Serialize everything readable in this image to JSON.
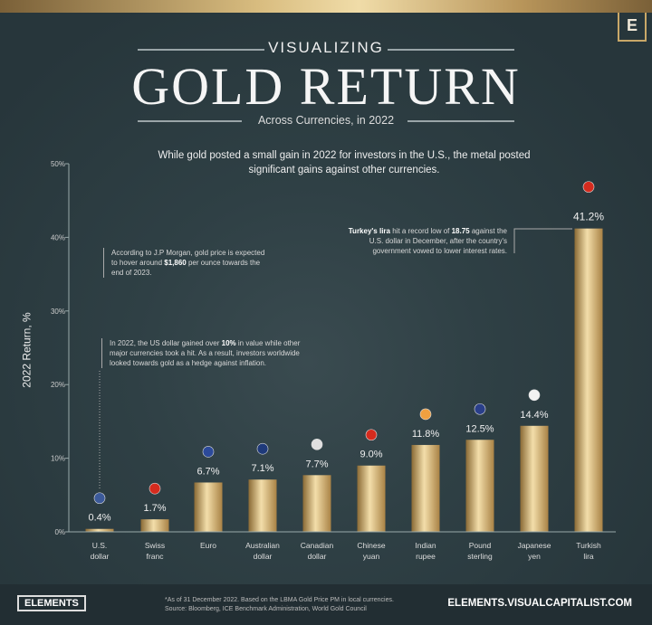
{
  "header": {
    "kicker": "VISUALIZING",
    "title": "GOLD RETURN",
    "subtitle": "Across Currencies, in 2022",
    "logo": "E"
  },
  "intro": "While gold posted a small gain in 2022 for investors in the U.S., the metal posted significant gains against other currencies.",
  "notes": {
    "jpm": {
      "pre": "According to J.P Morgan, gold price is expected to hover around ",
      "bold": "$1,860",
      "post": " per ounce towards the end of 2023."
    },
    "usd": {
      "pre": "In 2022, the US dollar gained over ",
      "bold": "10%",
      "post": " in value while other major currencies took a hit. As a result, investors worldwide looked towards gold as a hedge against inflation."
    },
    "lira": {
      "bold1": "Turkey's lira",
      "mid": " hit a record low of ",
      "bold2": "18.75",
      "post": " against the U.S. dollar in December, after the country's government vowed to lower interest rates."
    }
  },
  "chart_data": {
    "type": "bar",
    "ylabel": "2022 Return, %",
    "ylim": [
      0,
      50
    ],
    "yticks": [
      "0%",
      "10%",
      "20%",
      "30%",
      "40%",
      "50%"
    ],
    "categories": [
      "U.S. dollar",
      "Swiss franc",
      "Euro",
      "Australian dollar",
      "Canadian dollar",
      "Chinese yuan",
      "Indian rupee",
      "Pound sterling",
      "Japanese yen",
      "Turkish lira"
    ],
    "values": [
      0.4,
      1.7,
      6.7,
      7.1,
      7.7,
      9.0,
      11.8,
      12.5,
      14.4,
      41.2
    ],
    "labels": [
      "0.4%",
      "1.7%",
      "6.7%",
      "7.1%",
      "7.7%",
      "9.0%",
      "11.8%",
      "12.5%",
      "14.4%",
      "41.2%"
    ],
    "flag_icons": [
      "us-flag-icon",
      "swiss-flag-icon",
      "eu-flag-icon",
      "australia-flag-icon",
      "canada-flag-icon",
      "china-flag-icon",
      "india-flag-icon",
      "uk-flag-icon",
      "japan-flag-icon",
      "turkey-flag-icon"
    ],
    "flag_colors": [
      "#3c5a9a",
      "#d52b1e",
      "#2c4a9a",
      "#1f3a7a",
      "#e0e0e0",
      "#d52b1e",
      "#f0a040",
      "#2a3f8a",
      "#f2f2f2",
      "#d52b1e"
    ],
    "bar_color": "#d4b06a"
  },
  "footer": {
    "brand": "ELEMENTS",
    "source1": "*As of 31 December 2022. Based on the LBMA Gold Price PM in local currencies.",
    "source2": "Source: Bloomberg, ICE Benchmark Administration, World Gold Council",
    "url": "ELEMENTS.VISUALCAPITALIST.COM"
  }
}
